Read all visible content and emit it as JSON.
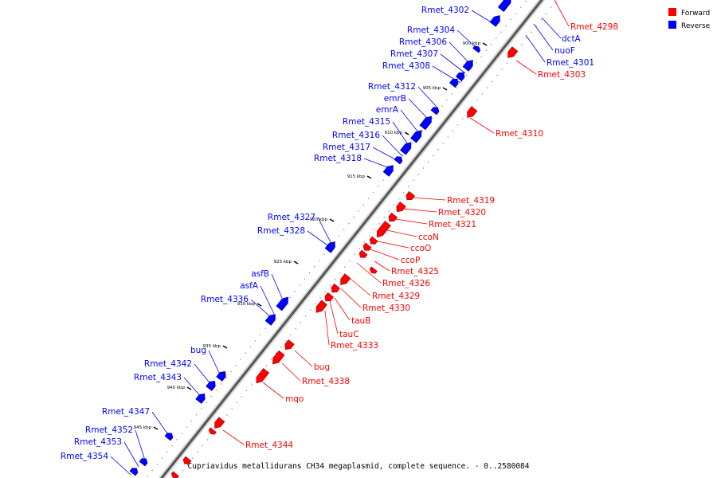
{
  "legend": {
    "forward": {
      "label": "Forward",
      "color": "#ff0000"
    },
    "reverse": {
      "label": "Reverse",
      "color": "#0000ff"
    }
  },
  "caption": "Cupriavidus metallidurans CH34 megaplasmid, complete sequence. - 0..2580084",
  "ticks": [
    "900 kbp",
    "905 kbp",
    "910 kbp",
    "915 kbp",
    "920 kbp",
    "925 kbp",
    "930 kbp",
    "935 kbp",
    "940 kbp",
    "945 kbp"
  ],
  "reverse_labels": [
    "Rmet_4302",
    "Rmet_4304",
    "Rmet_4306",
    "Rmet_4307",
    "Rmet_4308",
    "Rmet_4312",
    "emrB",
    "emrA",
    "Rmet_4315",
    "Rmet_4316",
    "Rmet_4317",
    "Rmet_4318",
    "Rmet_4327",
    "Rmet_4328",
    "asfB",
    "asfA",
    "Rmet_4336",
    "bug",
    "Rmet_4342",
    "Rmet_4343",
    "Rmet_4347",
    "Rmet_4352",
    "Rmet_4353",
    "Rmet_4354",
    "dctA",
    "nuoF",
    "Rmet_4301"
  ],
  "forward_labels": [
    "Rmet_4298",
    "Rmet_4303",
    "Rmet_4310",
    "Rmet_4319",
    "Rmet_4320",
    "Rmet_4321",
    "ccoN",
    "ccoO",
    "ccoP",
    "Rmet_4325",
    "Rmet_4326",
    "Rmet_4329",
    "Rmet_4330",
    "tauB",
    "tauC",
    "Rmet_4333",
    "bug",
    "Rmet_4338",
    "mqo",
    "Rmet_4344"
  ]
}
